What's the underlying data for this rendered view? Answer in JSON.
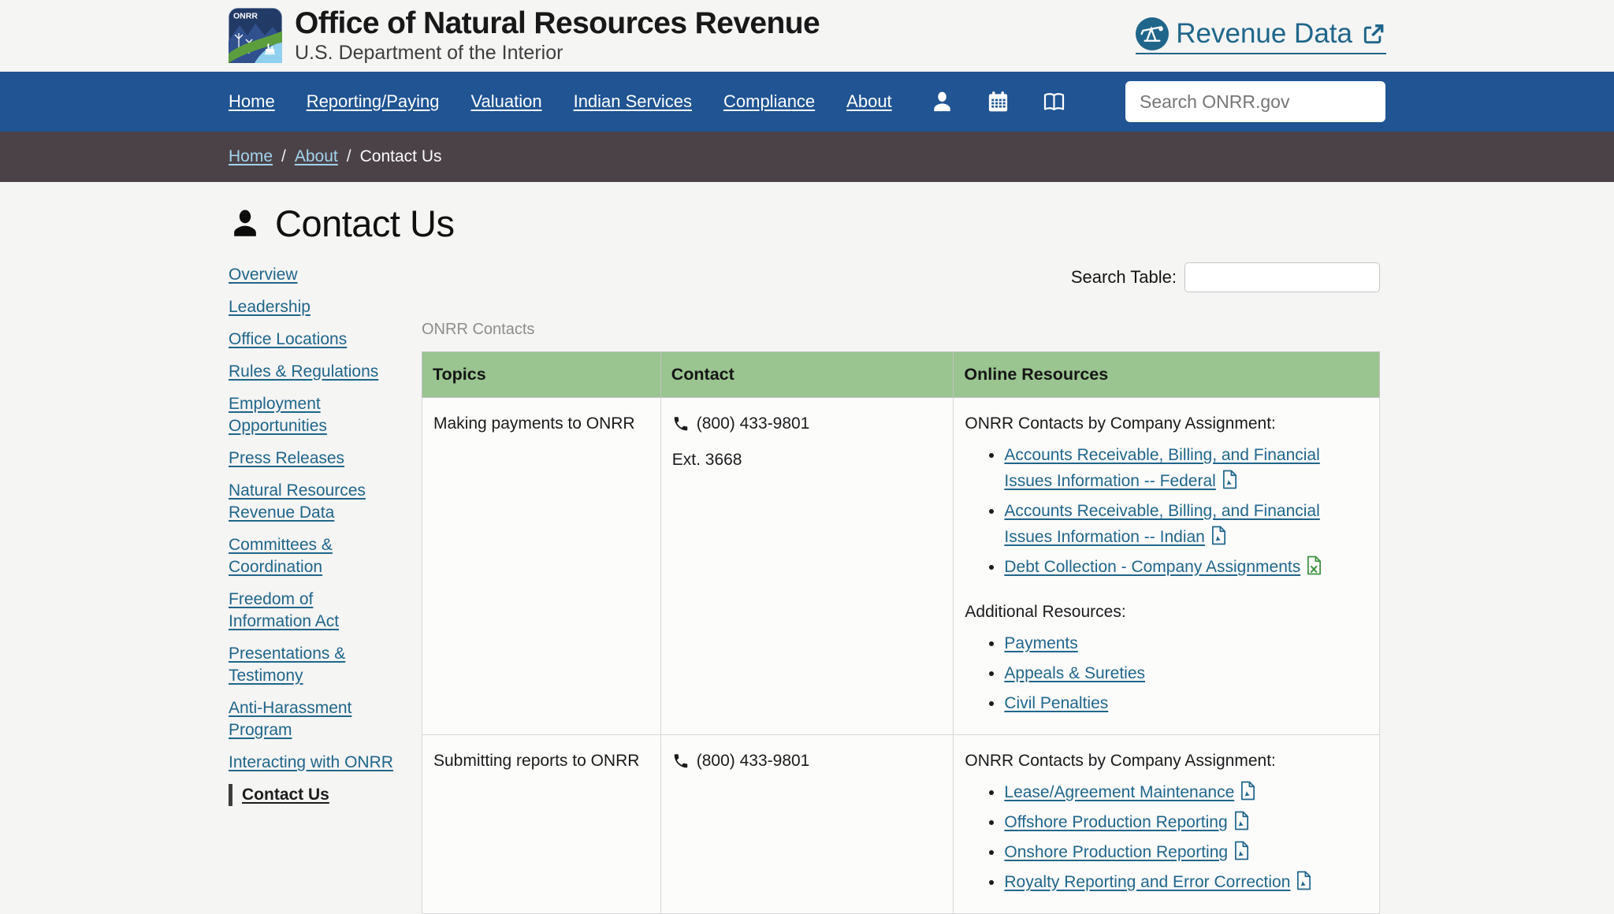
{
  "header": {
    "site_title": "Office of Natural Resources Revenue",
    "site_subtitle": "U.S. Department of the Interior",
    "logo_text": "ONRR",
    "revenue_data_label": "Revenue Data"
  },
  "nav": {
    "items": [
      "Home",
      "Reporting/Paying",
      "Valuation",
      "Indian Services",
      "Compliance",
      "About"
    ],
    "icon_names": [
      "user-icon",
      "calendar-icon",
      "book-icon"
    ],
    "search_placeholder": "Search ONRR.gov",
    "search_value": ""
  },
  "breadcrumb": {
    "links": [
      "Home",
      "About"
    ],
    "separator": "/",
    "current": "Contact Us"
  },
  "page": {
    "title": "Contact Us"
  },
  "sidebar": {
    "items": [
      "Overview",
      "Leadership",
      "Office Locations",
      "Rules & Regulations",
      "Employment Opportunities",
      "Press Releases",
      "Natural Resources Revenue Data",
      "Committees & Coordination",
      "Freedom of Information Act",
      "Presentations & Testimony",
      "Anti-Harassment Program",
      "Interacting with ONRR",
      "Contact Us"
    ],
    "active_item": "Contact Us"
  },
  "table_tools": {
    "search_label": "Search Table:",
    "search_value": ""
  },
  "table": {
    "caption": "ONRR Contacts",
    "columns": [
      "Topics",
      "Contact",
      "Online Resources"
    ],
    "rows": [
      {
        "topic": "Making payments to ONRR",
        "phone": "(800) 433-9801",
        "extension": "Ext. 3668",
        "sections": [
          {
            "heading": "ONRR Contacts by Company Assignment:",
            "links": [
              {
                "label": "Accounts Receivable, Billing, and Financial Issues Information -- Federal",
                "icon": "pdf"
              },
              {
                "label": "Accounts Receivable, Billing, and Financial Issues Information -- Indian",
                "icon": "pdf"
              },
              {
                "label": "Debt Collection - Company Assignments",
                "icon": "excel"
              }
            ]
          },
          {
            "heading": "Additional Resources:",
            "links": [
              {
                "label": "Payments",
                "icon": "none"
              },
              {
                "label": "Appeals & Sureties",
                "icon": "none"
              },
              {
                "label": "Civil Penalties",
                "icon": "none"
              }
            ]
          }
        ]
      },
      {
        "topic": "Submitting reports to ONRR",
        "phone": "(800) 433-9801",
        "extension": "",
        "sections": [
          {
            "heading": "ONRR Contacts by Company Assignment:",
            "links": [
              {
                "label": "Lease/Agreement Maintenance",
                "icon": "pdf"
              },
              {
                "label": "Offshore Production Reporting",
                "icon": "pdf"
              },
              {
                "label": "Onshore Production Reporting",
                "icon": "pdf"
              },
              {
                "label": "Royalty Reporting and Error Correction",
                "icon": "pdf"
              }
            ]
          }
        ]
      }
    ]
  },
  "colors": {
    "nav_background": "#205493",
    "breadcrumb_background": "#4b4247",
    "table_header_green": "#9ac490",
    "link_teal": "#20668a",
    "breadcrumb_link_blue": "#a3d3ee",
    "excel_green": "#3d9140",
    "page_background": "#f5f5f4"
  }
}
